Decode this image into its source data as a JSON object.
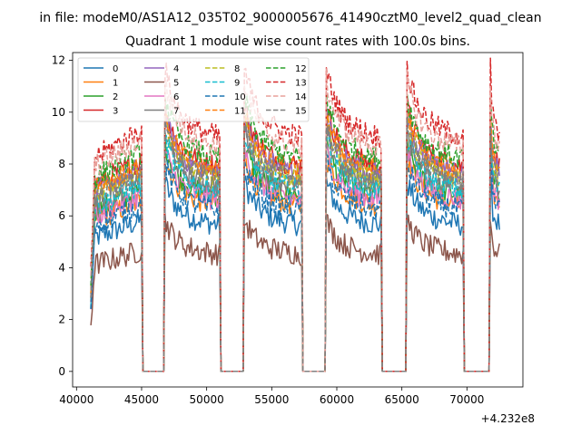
{
  "suptitle": "in file: modeM0/AS1A12_035T02_9000005676_41490cztM0_level2_quad_clean",
  "chart_data": {
    "type": "line",
    "title": "Quadrant 1 module wise count rates with 100.0s bins.",
    "xlabel": "",
    "ylabel": "",
    "x_offset_label": "+4.232e8",
    "xlim": [
      39700,
      74300
    ],
    "ylim": [
      -0.6,
      12.3
    ],
    "x_ticks": [
      40000,
      45000,
      50000,
      55000,
      60000,
      65000,
      70000
    ],
    "x_tick_labels": [
      "40000",
      "45000",
      "50000",
      "55000",
      "60000",
      "65000",
      "70000"
    ],
    "y_ticks": [
      0,
      2,
      4,
      6,
      8,
      10,
      12
    ],
    "y_tick_labels": [
      "0",
      "2",
      "4",
      "6",
      "8",
      "10",
      "12"
    ],
    "legend_location": "top-left",
    "on_segments": [
      [
        41100,
        45000
      ],
      [
        46800,
        51000
      ],
      [
        52900,
        57300
      ],
      [
        59200,
        63400
      ],
      [
        65400,
        69700
      ],
      [
        71800,
        72500
      ]
    ],
    "bin_width_s": 100,
    "series": [
      {
        "name": "0",
        "color": "#1f77b4",
        "dash": "solid",
        "level": 6.0
      },
      {
        "name": "1",
        "color": "#ff7f0e",
        "dash": "solid",
        "level": 6.8
      },
      {
        "name": "2",
        "color": "#2ca02c",
        "dash": "solid",
        "level": 7.2
      },
      {
        "name": "3",
        "color": "#d62728",
        "dash": "solid",
        "level": 8.4
      },
      {
        "name": "4",
        "color": "#9467bd",
        "dash": "solid",
        "level": 8.1
      },
      {
        "name": "5",
        "color": "#8c564b",
        "dash": "solid",
        "level": 4.8
      },
      {
        "name": "6",
        "color": "#e377c2",
        "dash": "solid",
        "level": 7.0
      },
      {
        "name": "7",
        "color": "#7f7f7f",
        "dash": "solid",
        "level": 7.6
      },
      {
        "name": "8",
        "color": "#bcbd22",
        "dash": "dashed",
        "level": 7.9
      },
      {
        "name": "9",
        "color": "#17becf",
        "dash": "dashed",
        "level": 7.4
      },
      {
        "name": "10",
        "color": "#1f77b4",
        "dash": "dashed",
        "level": 6.6
      },
      {
        "name": "11",
        "color": "#ff7f0e",
        "dash": "dashed",
        "level": 8.2
      },
      {
        "name": "12",
        "color": "#2ca02c",
        "dash": "dashed",
        "level": 8.7
      },
      {
        "name": "13",
        "color": "#d62728",
        "dash": "dashed",
        "level": 9.6
      },
      {
        "name": "14",
        "color": "#e8a09a",
        "dash": "dashed",
        "level": 9.2
      },
      {
        "name": "15",
        "color": "#7f7f7f",
        "dash": "dashed",
        "level": 7.8
      }
    ]
  }
}
